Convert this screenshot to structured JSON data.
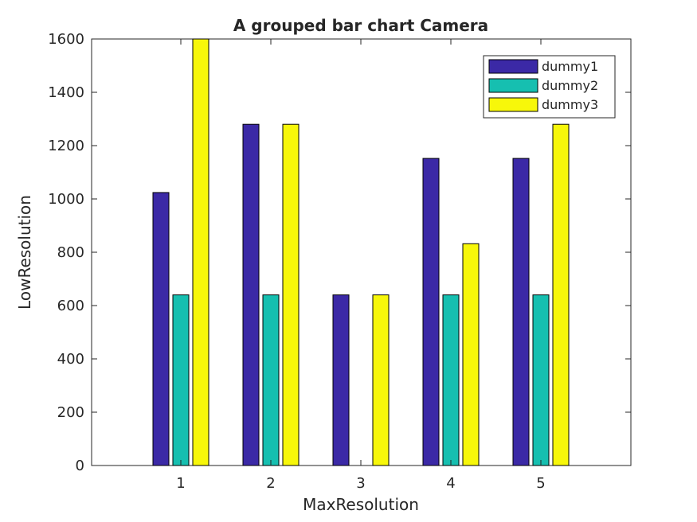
{
  "chart_data": {
    "type": "bar",
    "title": "A grouped bar chart Camera",
    "xlabel": "MaxResolution",
    "ylabel": "LowResolution",
    "categories": [
      "1",
      "2",
      "3",
      "4",
      "5"
    ],
    "ylim": [
      0,
      1600
    ],
    "yticks": [
      "0",
      "200",
      "400",
      "600",
      "800",
      "1000",
      "1200",
      "1400",
      "1600"
    ],
    "grid": false,
    "legend_position": "top-right",
    "series": [
      {
        "name": "dummy1",
        "color": "#3b29a6",
        "values": [
          1024,
          1280,
          640,
          1152,
          1152
        ]
      },
      {
        "name": "dummy2",
        "color": "#16bfb0",
        "values": [
          640,
          640,
          0,
          640,
          640
        ]
      },
      {
        "name": "dummy3",
        "color": "#f7f70a",
        "values": [
          1600,
          1280,
          640,
          832,
          1280
        ]
      }
    ]
  }
}
